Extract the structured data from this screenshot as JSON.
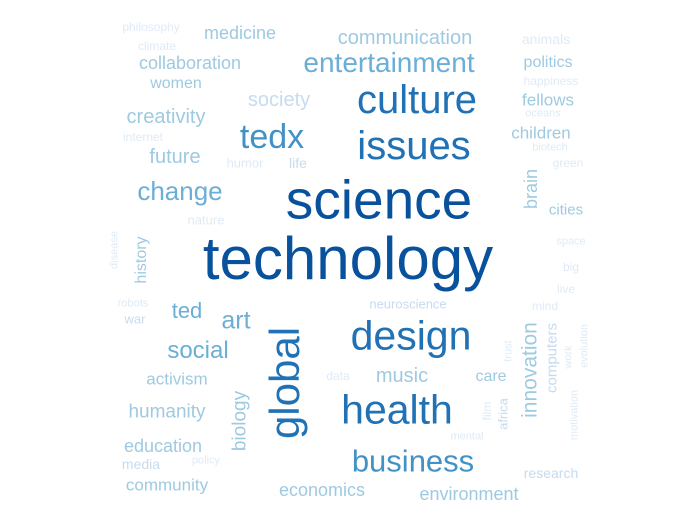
{
  "word_cloud": {
    "colors": {
      "c1": "#08306b",
      "c2": "#08519c",
      "c3": "#2171b5",
      "c4": "#4292c6",
      "c5": "#6baed6",
      "c6": "#9ecae1",
      "c7": "#c6dbef",
      "c8": "#deebf7"
    },
    "words": [
      {
        "text": "technology",
        "shade": "c2",
        "vertical": false
      },
      {
        "text": "science",
        "shade": "c2",
        "vertical": false
      },
      {
        "text": "culture",
        "shade": "c3",
        "vertical": false
      },
      {
        "text": "issues",
        "shade": "c3",
        "vertical": false
      },
      {
        "text": "design",
        "shade": "c3",
        "vertical": false
      },
      {
        "text": "health",
        "shade": "c3",
        "vertical": false
      },
      {
        "text": "global",
        "shade": "c3",
        "vertical": true
      },
      {
        "text": "tedx",
        "shade": "c4",
        "vertical": false
      },
      {
        "text": "business",
        "shade": "c4",
        "vertical": false
      },
      {
        "text": "entertainment",
        "shade": "c5",
        "vertical": false
      },
      {
        "text": "change",
        "shade": "c5",
        "vertical": false
      },
      {
        "text": "social",
        "shade": "c5",
        "vertical": false
      },
      {
        "text": "art",
        "shade": "c5",
        "vertical": false
      },
      {
        "text": "ted",
        "shade": "c5",
        "vertical": false
      },
      {
        "text": "innovation",
        "shade": "c6",
        "vertical": true
      },
      {
        "text": "communication",
        "shade": "c6",
        "vertical": false
      },
      {
        "text": "collaboration",
        "shade": "c6",
        "vertical": false
      },
      {
        "text": "medicine",
        "shade": "c6",
        "vertical": false
      },
      {
        "text": "creativity",
        "shade": "c6",
        "vertical": false
      },
      {
        "text": "society",
        "shade": "c7",
        "vertical": false
      },
      {
        "text": "future",
        "shade": "c6",
        "vertical": false
      },
      {
        "text": "women",
        "shade": "c6",
        "vertical": false
      },
      {
        "text": "politics",
        "shade": "c6",
        "vertical": false
      },
      {
        "text": "fellows",
        "shade": "c6",
        "vertical": false
      },
      {
        "text": "children",
        "shade": "c6",
        "vertical": false
      },
      {
        "text": "brain",
        "shade": "c6",
        "vertical": true
      },
      {
        "text": "cities",
        "shade": "c6",
        "vertical": false
      },
      {
        "text": "history",
        "shade": "c6",
        "vertical": true
      },
      {
        "text": "activism",
        "shade": "c6",
        "vertical": false
      },
      {
        "text": "music",
        "shade": "c6",
        "vertical": false
      },
      {
        "text": "care",
        "shade": "c6",
        "vertical": false
      },
      {
        "text": "humanity",
        "shade": "c6",
        "vertical": false
      },
      {
        "text": "biology",
        "shade": "c6",
        "vertical": true
      },
      {
        "text": "education",
        "shade": "c6",
        "vertical": false
      },
      {
        "text": "community",
        "shade": "c6",
        "vertical": false
      },
      {
        "text": "economics",
        "shade": "c6",
        "vertical": false
      },
      {
        "text": "environment",
        "shade": "c6",
        "vertical": false
      },
      {
        "text": "computers",
        "shade": "c7",
        "vertical": true
      },
      {
        "text": "life",
        "shade": "c7",
        "vertical": false
      },
      {
        "text": "research",
        "shade": "c7",
        "vertical": false
      },
      {
        "text": "media",
        "shade": "c7",
        "vertical": false
      },
      {
        "text": "war",
        "shade": "c7",
        "vertical": false
      },
      {
        "text": "neuroscience",
        "shade": "c7",
        "vertical": false
      },
      {
        "text": "africa",
        "shade": "c7",
        "vertical": true
      },
      {
        "text": "philosophy",
        "shade": "c8",
        "vertical": false
      },
      {
        "text": "climate",
        "shade": "c8",
        "vertical": false
      },
      {
        "text": "animals",
        "shade": "c8",
        "vertical": false
      },
      {
        "text": "happiness",
        "shade": "c8",
        "vertical": false
      },
      {
        "text": "oceans",
        "shade": "c8",
        "vertical": false
      },
      {
        "text": "internet",
        "shade": "c8",
        "vertical": false
      },
      {
        "text": "humor",
        "shade": "c8",
        "vertical": false
      },
      {
        "text": "biotech",
        "shade": "c8",
        "vertical": false
      },
      {
        "text": "green",
        "shade": "c8",
        "vertical": false
      },
      {
        "text": "nature",
        "shade": "c8",
        "vertical": false
      },
      {
        "text": "space",
        "shade": "c8",
        "vertical": false
      },
      {
        "text": "big",
        "shade": "c8",
        "vertical": false
      },
      {
        "text": "live",
        "shade": "c8",
        "vertical": false
      },
      {
        "text": "disease",
        "shade": "c8",
        "vertical": true
      },
      {
        "text": "robots",
        "shade": "c8",
        "vertical": false
      },
      {
        "text": "mind",
        "shade": "c8",
        "vertical": false
      },
      {
        "text": "trust",
        "shade": "c8",
        "vertical": true
      },
      {
        "text": "work",
        "shade": "c8",
        "vertical": true
      },
      {
        "text": "evolution",
        "shade": "c8",
        "vertical": true
      },
      {
        "text": "data",
        "shade": "c8",
        "vertical": false
      },
      {
        "text": "film",
        "shade": "c8",
        "vertical": true
      },
      {
        "text": "motivation",
        "shade": "c8",
        "vertical": true
      },
      {
        "text": "mental",
        "shade": "c8",
        "vertical": false
      },
      {
        "text": "policy",
        "shade": "c8",
        "vertical": false
      }
    ]
  }
}
